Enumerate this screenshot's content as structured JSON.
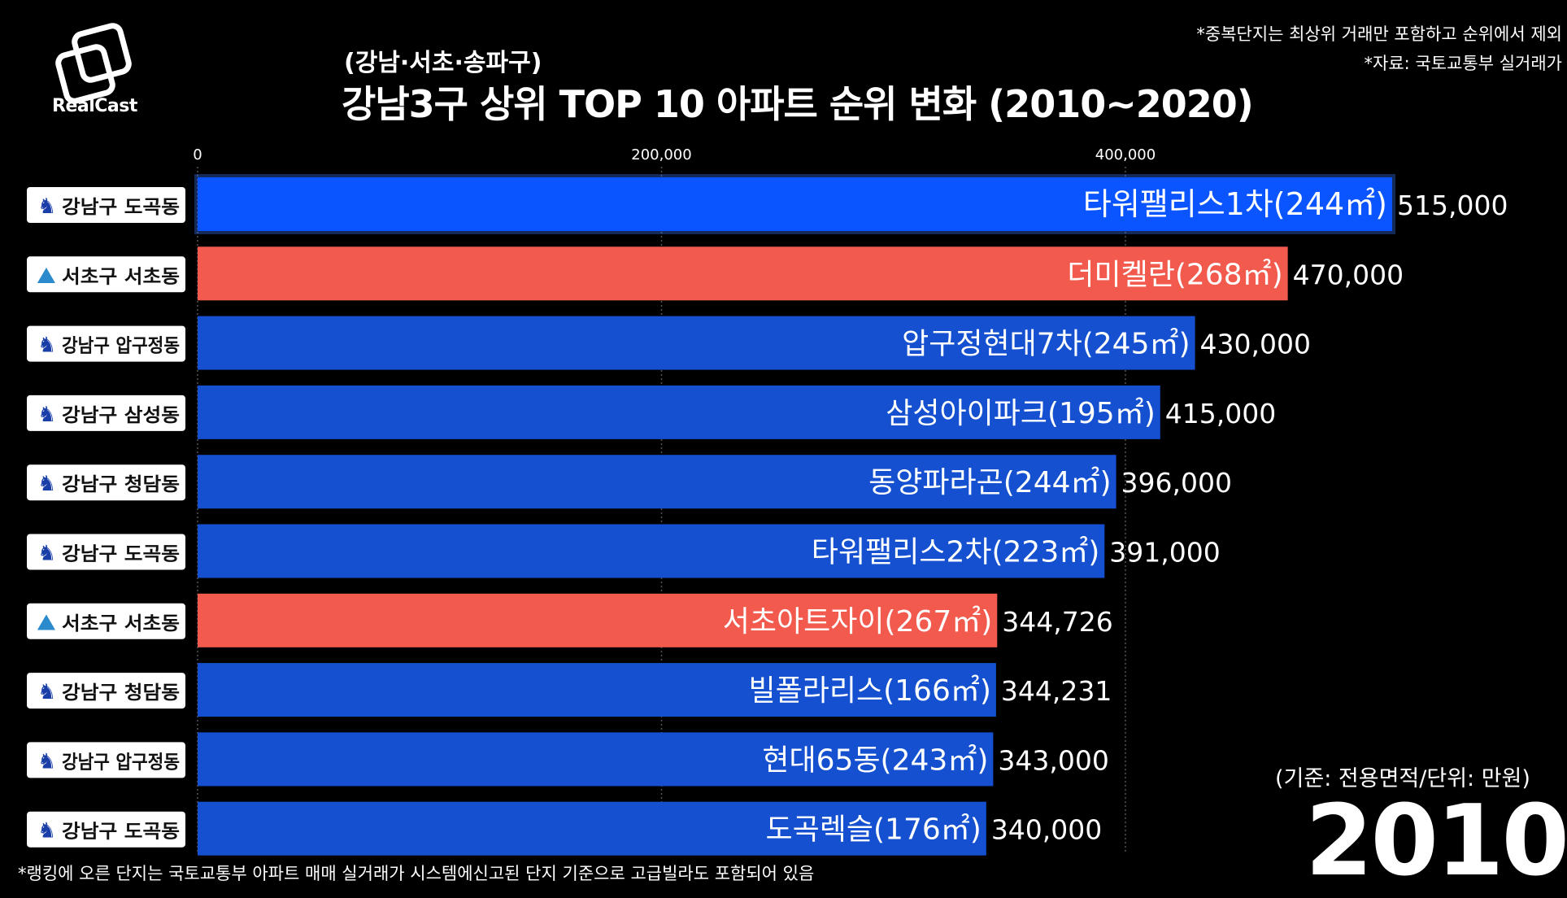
{
  "brand": {
    "name": "RealCast"
  },
  "header": {
    "subtitle": "(강남·서초·송파구)",
    "title": "강남3구 상위 TOP 10 아파트 순위 변화 (2010~2020)"
  },
  "notes": {
    "line1": "*중복단지는 최상위 거래만 포함하고 순위에서 제외",
    "line2": "*자료: 국토교통부 실거래가"
  },
  "basis": "(기준: 전용면적/단위: 만원)",
  "year": "2010",
  "footer": "*랭킹에 오른 단지는 국토교통부 아파트 매매 실거래가 시스템에신고된 단지 기준으로 고급빌라도 포함되어 있음",
  "colors": {
    "gangnam": "#1450d0",
    "gangnam_top": "#0a55ff",
    "seocho": "#f25a4e",
    "grid": "#555555"
  },
  "chart_data": {
    "type": "bar",
    "orientation": "horizontal",
    "x_ticks": [
      0,
      200000,
      400000
    ],
    "x_tick_labels": [
      "0",
      "200,000",
      "400,000"
    ],
    "xlim": [
      0,
      515000
    ],
    "grid": true,
    "categories": [
      "강남구 도곡동",
      "서초구 서초동",
      "강남구 압구정동",
      "강남구 삼성동",
      "강남구 청담동",
      "강남구 도곡동",
      "서초구 서초동",
      "강남구 청담동",
      "강남구 압구정동",
      "강남구 도곡동"
    ],
    "district": [
      "gangnam",
      "seocho",
      "gangnam",
      "gangnam",
      "gangnam",
      "gangnam",
      "seocho",
      "gangnam",
      "gangnam",
      "gangnam"
    ],
    "apartments": [
      "타워팰리스1차(244㎡)",
      "더미켈란(268㎡)",
      "압구정현대7차(245㎡)",
      "삼성아이파크(195㎡)",
      "동양파라곤(244㎡)",
      "타워팰리스2차(223㎡)",
      "서초아트자이(267㎡)",
      "빌폴라리스(166㎡)",
      "현대65동(243㎡)",
      "도곡렉슬(176㎡)"
    ],
    "values": [
      515000,
      470000,
      430000,
      415000,
      396000,
      391000,
      344726,
      344231,
      343000,
      340000
    ],
    "value_labels": [
      "515,000",
      "470,000",
      "430,000",
      "415,000",
      "396,000",
      "391,000",
      "344,726",
      "344,231",
      "343,000",
      "340,000"
    ]
  }
}
